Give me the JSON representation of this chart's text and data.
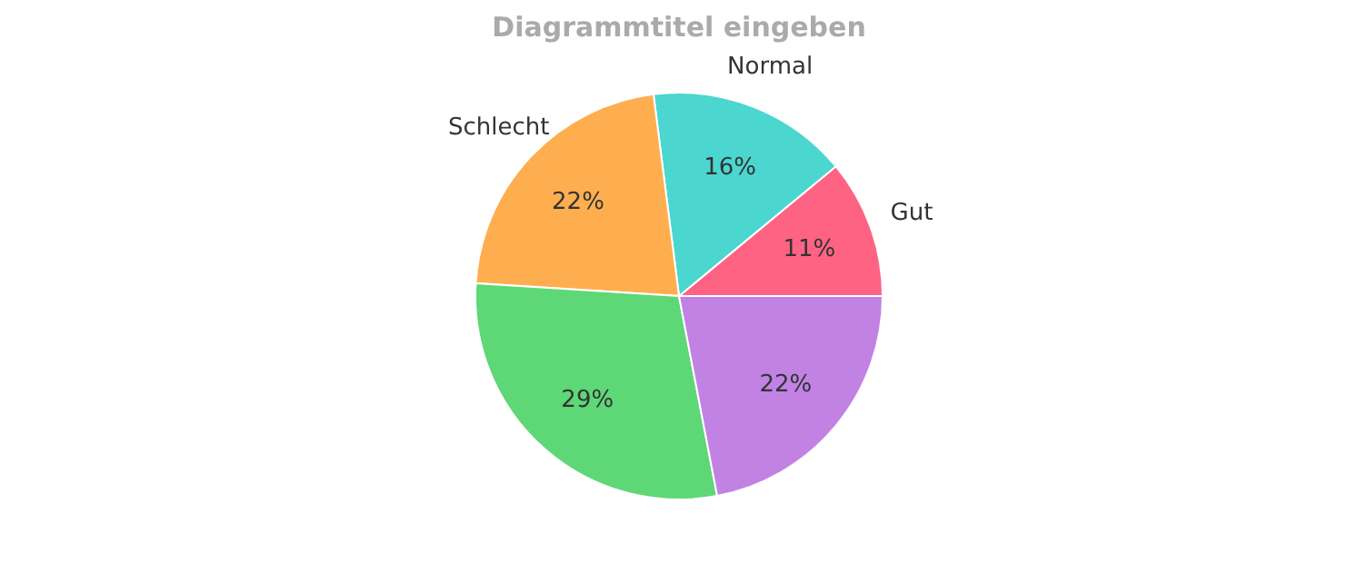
{
  "chart_data": {
    "type": "pie",
    "title": "Diagrammtitel eingeben",
    "categories": [
      "Gut",
      "Normal",
      "Schlecht",
      null,
      null
    ],
    "values": [
      11,
      16,
      22,
      29,
      22
    ],
    "value_labels": [
      "11%",
      "16%",
      "22%",
      "29%",
      "22%"
    ],
    "colors": [
      "#ff6384",
      "#4bd6cf",
      "#ffae4f",
      "#5ed776",
      "#c182e4"
    ],
    "legend": false
  }
}
